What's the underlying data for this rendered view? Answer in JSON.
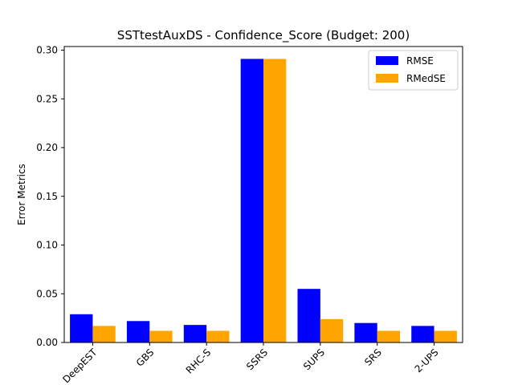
{
  "chart_data": {
    "type": "bar",
    "title": "SSTtestAuxDS - Confidence_Score (Budget: 200)",
    "xlabel": "",
    "ylabel": "Error Metrics",
    "categories": [
      "DeepEST",
      "GBS",
      "RHC-S",
      "SSRS",
      "SUPS",
      "SRS",
      "2-UPS"
    ],
    "series": [
      {
        "name": "RMSE",
        "color": "#0000ff",
        "values": [
          0.029,
          0.022,
          0.018,
          0.291,
          0.055,
          0.02,
          0.017
        ]
      },
      {
        "name": "RMedSE",
        "color": "#ffa500",
        "values": [
          0.017,
          0.012,
          0.012,
          0.291,
          0.024,
          0.012,
          0.012
        ]
      }
    ],
    "ylim": [
      0,
      0.3
    ],
    "yticks": [
      "0.00",
      "0.05",
      "0.10",
      "0.15",
      "0.20",
      "0.25",
      "0.30"
    ],
    "legend_position": "top-right",
    "grid": false
  }
}
